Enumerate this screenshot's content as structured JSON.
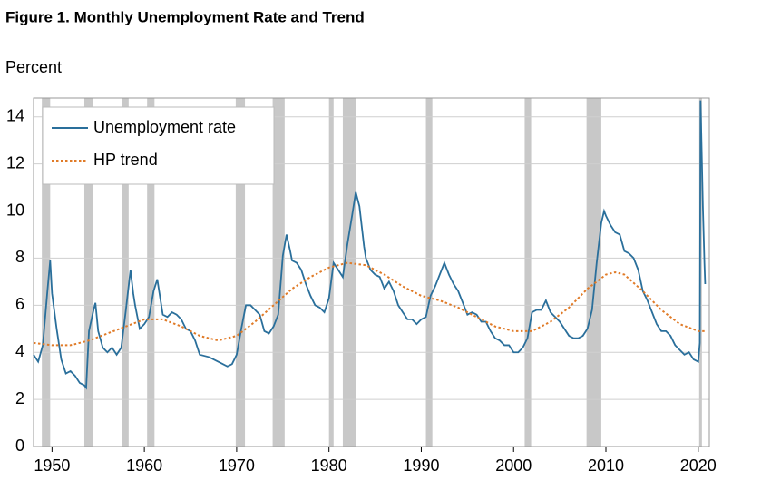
{
  "chart_data": {
    "type": "line",
    "title": "Figure 1. Monthly Unemployment Rate and Trend",
    "y_label": "Percent",
    "xlim": [
      1948,
      2021.2
    ],
    "ylim": [
      0,
      14.8
    ],
    "xticks": [
      1950,
      1960,
      1970,
      1980,
      1990,
      2000,
      2010,
      2020
    ],
    "yticks": [
      0,
      2,
      4,
      6,
      8,
      10,
      12,
      14
    ],
    "grid": true,
    "legend": "upper left",
    "recession_color": "#c8c8c8",
    "recessions": [
      [
        1948.9,
        1949.8
      ],
      [
        1953.5,
        1954.4
      ],
      [
        1957.6,
        1958.3
      ],
      [
        1960.3,
        1961.1
      ],
      [
        1969.9,
        1970.9
      ],
      [
        1973.9,
        1975.2
      ],
      [
        1980.0,
        1980.5
      ],
      [
        1981.5,
        1982.9
      ],
      [
        1990.5,
        1991.2
      ],
      [
        2001.2,
        2001.9
      ],
      [
        2007.9,
        2009.5
      ],
      [
        2020.1,
        2020.4
      ]
    ],
    "series": [
      {
        "name": "Unemployment rate",
        "color": "#2a6f9b",
        "style": "solid",
        "x": [
          1948.0,
          1948.5,
          1949.0,
          1949.5,
          1949.8,
          1950.0,
          1950.5,
          1951.0,
          1951.5,
          1952.0,
          1952.5,
          1953.0,
          1953.5,
          1953.7,
          1954.0,
          1954.5,
          1954.7,
          1955.0,
          1955.5,
          1956.0,
          1956.5,
          1957.0,
          1957.5,
          1958.0,
          1958.5,
          1958.8,
          1959.0,
          1959.5,
          1960.0,
          1960.5,
          1961.0,
          1961.4,
          1961.8,
          1962.0,
          1962.5,
          1963.0,
          1963.5,
          1964.0,
          1964.5,
          1965.0,
          1965.5,
          1966.0,
          1967.0,
          1968.0,
          1969.0,
          1969.5,
          1970.0,
          1970.5,
          1971.0,
          1971.5,
          1972.0,
          1972.5,
          1973.0,
          1973.5,
          1974.0,
          1974.5,
          1975.0,
          1975.4,
          1975.8,
          1976.0,
          1976.5,
          1977.0,
          1977.5,
          1978.0,
          1978.5,
          1979.0,
          1979.5,
          1980.0,
          1980.5,
          1981.0,
          1981.5,
          1982.0,
          1982.5,
          1982.9,
          1983.3,
          1983.8,
          1984.0,
          1984.5,
          1985.0,
          1985.5,
          1986.0,
          1986.5,
          1987.0,
          1987.5,
          1988.0,
          1988.5,
          1989.0,
          1989.5,
          1990.0,
          1990.5,
          1991.0,
          1991.5,
          1992.0,
          1992.5,
          1993.0,
          1993.5,
          1994.0,
          1994.5,
          1995.0,
          1995.5,
          1996.0,
          1996.5,
          1997.0,
          1997.5,
          1998.0,
          1998.5,
          1999.0,
          1999.5,
          2000.0,
          2000.5,
          2001.0,
          2001.5,
          2002.0,
          2002.5,
          2003.0,
          2003.5,
          2004.0,
          2004.5,
          2005.0,
          2005.5,
          2006.0,
          2006.5,
          2007.0,
          2007.5,
          2008.0,
          2008.5,
          2009.0,
          2009.5,
          2009.8,
          2010.0,
          2010.5,
          2011.0,
          2011.5,
          2012.0,
          2012.5,
          2013.0,
          2013.5,
          2014.0,
          2014.5,
          2015.0,
          2015.5,
          2016.0,
          2016.5,
          2017.0,
          2017.5,
          2018.0,
          2018.5,
          2019.0,
          2019.5,
          2020.0,
          2020.17,
          2020.25,
          2020.33,
          2020.5,
          2020.67,
          2020.75
        ],
        "values": [
          3.9,
          3.6,
          4.3,
          6.6,
          7.9,
          6.5,
          5.0,
          3.7,
          3.1,
          3.2,
          3.0,
          2.7,
          2.6,
          2.5,
          4.9,
          5.8,
          6.1,
          4.9,
          4.2,
          4.0,
          4.2,
          3.9,
          4.2,
          5.8,
          7.5,
          6.5,
          6.0,
          5.0,
          5.2,
          5.5,
          6.6,
          7.1,
          6.1,
          5.6,
          5.5,
          5.7,
          5.6,
          5.4,
          5.0,
          4.9,
          4.5,
          3.9,
          3.8,
          3.6,
          3.4,
          3.5,
          3.9,
          5.0,
          6.0,
          6.0,
          5.8,
          5.6,
          4.9,
          4.8,
          5.1,
          5.6,
          8.1,
          9.0,
          8.3,
          7.9,
          7.8,
          7.5,
          6.9,
          6.4,
          6.0,
          5.9,
          5.7,
          6.3,
          7.8,
          7.5,
          7.2,
          8.6,
          9.8,
          10.8,
          10.2,
          8.5,
          8.0,
          7.5,
          7.3,
          7.2,
          6.7,
          7.0,
          6.6,
          6.0,
          5.7,
          5.4,
          5.4,
          5.2,
          5.4,
          5.5,
          6.4,
          6.8,
          7.3,
          7.8,
          7.3,
          6.9,
          6.6,
          6.1,
          5.6,
          5.7,
          5.6,
          5.3,
          5.3,
          4.9,
          4.6,
          4.5,
          4.3,
          4.3,
          4.0,
          4.0,
          4.2,
          4.6,
          5.7,
          5.8,
          5.8,
          6.2,
          5.7,
          5.5,
          5.3,
          5.0,
          4.7,
          4.6,
          4.6,
          4.7,
          5.0,
          5.8,
          7.8,
          9.5,
          10.0,
          9.8,
          9.4,
          9.1,
          9.0,
          8.3,
          8.2,
          8.0,
          7.5,
          6.6,
          6.2,
          5.7,
          5.2,
          4.9,
          4.9,
          4.7,
          4.3,
          4.1,
          3.9,
          4.0,
          3.7,
          3.6,
          4.4,
          14.7,
          13.3,
          10.2,
          7.8,
          6.9
        ]
      },
      {
        "name": "HP trend",
        "color": "#e07b28",
        "style": "dotted",
        "x": [
          1948,
          1950,
          1952,
          1954,
          1956,
          1958,
          1960,
          1962,
          1964,
          1966,
          1968,
          1970,
          1972,
          1974,
          1976,
          1978,
          1980,
          1982,
          1984,
          1986,
          1988,
          1990,
          1992,
          1994,
          1996,
          1998,
          2000,
          2002,
          2004,
          2006,
          2008,
          2010,
          2011,
          2012,
          2014,
          2016,
          2018,
          2020,
          2020.75
        ],
        "values": [
          4.4,
          4.3,
          4.3,
          4.5,
          4.8,
          5.1,
          5.4,
          5.4,
          5.1,
          4.7,
          4.5,
          4.7,
          5.3,
          6.0,
          6.7,
          7.2,
          7.6,
          7.8,
          7.7,
          7.3,
          6.8,
          6.4,
          6.2,
          5.9,
          5.5,
          5.1,
          4.9,
          4.9,
          5.3,
          5.9,
          6.7,
          7.3,
          7.4,
          7.3,
          6.6,
          5.8,
          5.2,
          4.9,
          4.9
        ]
      }
    ]
  }
}
